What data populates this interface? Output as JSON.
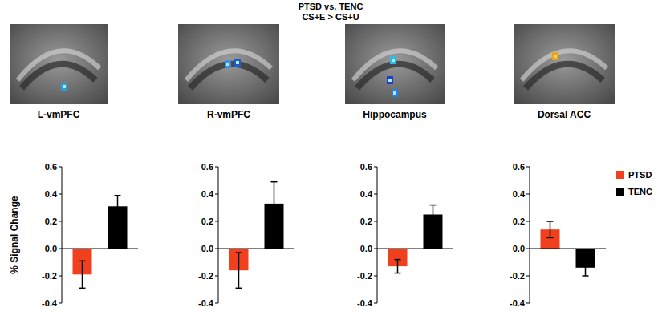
{
  "header": {
    "title": "PTSD vs. TENC",
    "subtitle": "CS+E > CS+U"
  },
  "chart_data": [
    {
      "type": "bar",
      "title": "L-vmPFC",
      "y_label": "% Signal Change",
      "categories": [
        null
      ],
      "series": [
        {
          "name": "PTSD",
          "color": "#f0401e",
          "values": [
            -0.19
          ],
          "errors": [
            0.1
          ]
        },
        {
          "name": "TENC",
          "color": "#000000",
          "values": [
            0.31
          ],
          "errors": [
            0.08
          ]
        }
      ],
      "ylim": [
        -0.4,
        0.6
      ],
      "yticks": [
        -0.4,
        -0.2,
        {
          "value": 0,
          "label": "0.0"
        },
        0.2,
        0.4,
        0.6
      ]
    },
    {
      "type": "bar",
      "title": "R-vmPFC",
      "categories": [
        null
      ],
      "series": [
        {
          "name": "PTSD",
          "color": "#f0401e",
          "values": [
            -0.16
          ],
          "errors": [
            0.13
          ]
        },
        {
          "name": "TENC",
          "color": "#000000",
          "values": [
            0.33
          ],
          "errors": [
            0.16
          ]
        }
      ],
      "ylim": [
        -0.4,
        0.6
      ],
      "yticks": [
        -0.4,
        -0.2,
        {
          "value": 0,
          "label": "0.0"
        },
        0.2,
        0.4,
        0.6
      ]
    },
    {
      "type": "bar",
      "title": "Hippocampus",
      "categories": [
        null
      ],
      "series": [
        {
          "name": "PTSD",
          "color": "#f0401e",
          "values": [
            -0.13
          ],
          "errors": [
            0.05
          ]
        },
        {
          "name": "TENC",
          "color": "#000000",
          "values": [
            0.25
          ],
          "errors": [
            0.07
          ]
        }
      ],
      "ylim": [
        -0.4,
        0.6
      ],
      "yticks": [
        -0.4,
        -0.2,
        {
          "value": 0,
          "label": "0.0"
        },
        0.2,
        0.4,
        0.6
      ]
    },
    {
      "type": "bar",
      "title": "Dorsal ACC",
      "categories": [
        null
      ],
      "legend": "right",
      "series": [
        {
          "name": "PTSD",
          "color": "#f0401e",
          "values": [
            0.14
          ],
          "errors": [
            0.06
          ]
        },
        {
          "name": "TENC",
          "color": "#000000",
          "values": [
            -0.14
          ],
          "errors": [
            0.06
          ]
        }
      ],
      "ylim": [
        -0.4,
        0.6
      ],
      "yticks": [
        -0.4,
        -0.2,
        {
          "value": 0,
          "label": "0.0"
        },
        0.2,
        0.4,
        0.6
      ]
    }
  ]
}
